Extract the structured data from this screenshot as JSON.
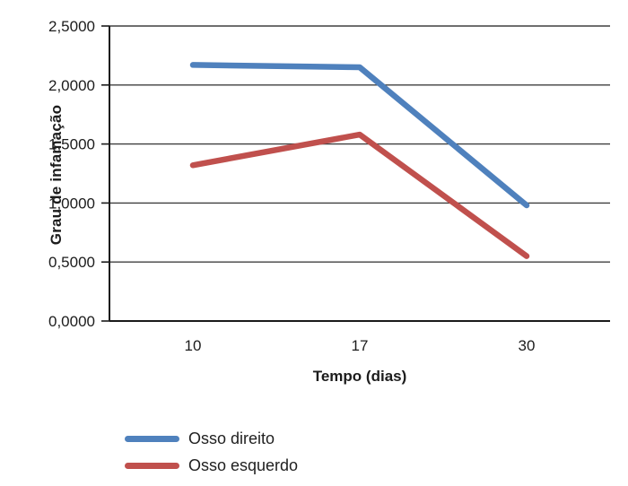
{
  "chart_data": {
    "type": "line",
    "title": "",
    "categories": [
      "10",
      "17",
      "30"
    ],
    "series": [
      {
        "name": "Osso direito",
        "color": "#4f81bd",
        "values": [
          2.17,
          2.15,
          0.98
        ]
      },
      {
        "name": "Osso esquerdo",
        "color": "#c0504d",
        "values": [
          1.32,
          1.58,
          0.55
        ]
      }
    ],
    "xlabel": "Tempo (dias)",
    "ylabel": "Grau de infamação",
    "ylim": [
      0,
      2.5
    ],
    "ytick_step": 0.5,
    "ytick_labels": [
      "0,0000",
      "0,5000",
      "1,0000",
      "1,5000",
      "2,0000",
      "2,5000"
    ],
    "grid": true,
    "legend_position": "bottom-left",
    "marker": "none"
  },
  "colors": {
    "background": "#ffffff",
    "axis": "#1a1a1a",
    "gridline": "#3f3f3f",
    "text": "#1c1c1c"
  }
}
